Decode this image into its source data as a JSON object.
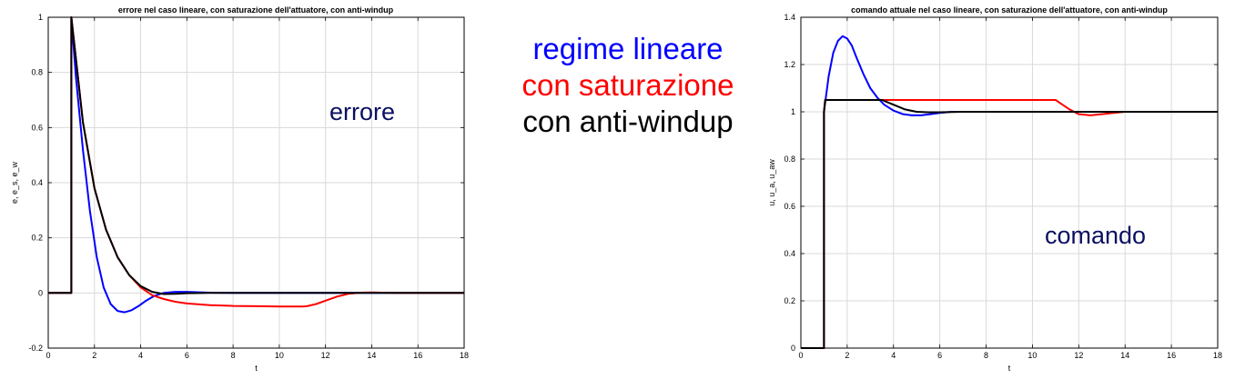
{
  "legend": {
    "linear": {
      "text": "regime lineare",
      "color": "#0000ff"
    },
    "saturation": {
      "text": "con saturazione",
      "color": "#ff0000"
    },
    "antiwindup": {
      "text": "con anti-windup",
      "color": "#000000"
    }
  },
  "chart_data": [
    {
      "id": "left",
      "type": "line",
      "title": "errore nel caso lineare, con saturazione dell'attuatore, con anti-windup",
      "xlabel": "t",
      "ylabel": "e, e_s, e_w",
      "annotation": "errore",
      "xlim": [
        0,
        18
      ],
      "ylim": [
        -0.2,
        1
      ],
      "xticks": [
        "0",
        "2",
        "4",
        "6",
        "8",
        "10",
        "12",
        "14",
        "16",
        "18"
      ],
      "yticks": [
        "-0.2",
        "0",
        "0.2",
        "0.4",
        "0.6",
        "0.8",
        "1"
      ],
      "grid": true,
      "series": [
        {
          "key": "linear",
          "color": "#0000ff",
          "x": [
            0,
            1,
            1,
            1.2,
            1.5,
            1.8,
            2.1,
            2.4,
            2.7,
            3.0,
            3.3,
            3.6,
            3.9,
            4.2,
            4.6,
            5.0,
            5.5,
            6.0,
            7.0,
            8.0,
            10,
            12,
            14,
            16,
            18
          ],
          "y": [
            0,
            0,
            1,
            0.78,
            0.52,
            0.3,
            0.13,
            0.02,
            -0.04,
            -0.065,
            -0.07,
            -0.063,
            -0.048,
            -0.03,
            -0.01,
            0.0,
            0.004,
            0.004,
            0.001,
            0,
            0,
            0,
            0,
            0,
            0
          ]
        },
        {
          "key": "saturation",
          "color": "#ff0000",
          "x": [
            0,
            1,
            1,
            1.5,
            2,
            2.5,
            3,
            3.5,
            4,
            4.5,
            5,
            5.5,
            6,
            7,
            8,
            9,
            10,
            11,
            11.2,
            11.6,
            12,
            12.5,
            13,
            13.5,
            14,
            14.5,
            15,
            16,
            18
          ],
          "y": [
            0,
            0,
            1,
            0.62,
            0.38,
            0.23,
            0.13,
            0.065,
            0.02,
            -0.008,
            -0.022,
            -0.032,
            -0.038,
            -0.044,
            -0.047,
            -0.048,
            -0.049,
            -0.049,
            -0.048,
            -0.04,
            -0.028,
            -0.013,
            -0.003,
            0.001,
            0.002,
            0.001,
            0,
            0,
            0
          ]
        },
        {
          "key": "antiwindup",
          "color": "#000000",
          "x": [
            0,
            1,
            1,
            1.5,
            2,
            2.5,
            3,
            3.5,
            4,
            4.5,
            5,
            5.5,
            6,
            7,
            8,
            10,
            12,
            14,
            16,
            18
          ],
          "y": [
            0,
            0,
            1,
            0.62,
            0.38,
            0.23,
            0.13,
            0.065,
            0.025,
            0.004,
            -0.004,
            -0.003,
            -0.001,
            0,
            0,
            0,
            0,
            0,
            0,
            0
          ]
        }
      ]
    },
    {
      "id": "right",
      "type": "line",
      "title": "comando attuale nel caso lineare, con saturazione dell'attuatore, con anti-windup",
      "xlabel": "t",
      "ylabel": "u, u_a, u_aw",
      "annotation": "comando",
      "xlim": [
        0,
        18
      ],
      "ylim": [
        0,
        1.4
      ],
      "xticks": [
        "0",
        "2",
        "4",
        "6",
        "8",
        "10",
        "12",
        "14",
        "16",
        "18"
      ],
      "yticks": [
        "0",
        "0.2",
        "0.4",
        "0.6",
        "0.8",
        "1",
        "1.2",
        "1.4"
      ],
      "grid": true,
      "series": [
        {
          "key": "linear",
          "color": "#0000ff",
          "x": [
            0,
            1,
            1,
            1.2,
            1.4,
            1.6,
            1.8,
            2.0,
            2.2,
            2.4,
            2.7,
            3.0,
            3.3,
            3.6,
            4.0,
            4.4,
            4.8,
            5.2,
            5.6,
            6.0,
            6.5,
            7,
            8,
            10,
            12,
            14,
            16,
            18
          ],
          "y": [
            0,
            0,
            1,
            1.15,
            1.25,
            1.3,
            1.32,
            1.31,
            1.28,
            1.23,
            1.16,
            1.1,
            1.06,
            1.03,
            1.005,
            0.99,
            0.985,
            0.985,
            0.99,
            0.995,
            1.0,
            1.0,
            1.0,
            1,
            1,
            1,
            1,
            1
          ]
        },
        {
          "key": "saturation",
          "color": "#ff0000",
          "x": [
            0,
            1,
            1,
            1.05,
            4,
            6,
            8,
            10,
            11,
            11.3,
            11.6,
            12,
            12.5,
            13,
            13.5,
            14,
            15,
            16,
            18
          ],
          "y": [
            0,
            0,
            1,
            1.05,
            1.05,
            1.05,
            1.05,
            1.05,
            1.05,
            1.03,
            1.01,
            0.99,
            0.985,
            0.99,
            0.995,
            1,
            1,
            1,
            1
          ]
        },
        {
          "key": "antiwindup",
          "color": "#000000",
          "x": [
            0,
            1,
            1,
            1.05,
            3.5,
            4,
            4.5,
            5,
            5.5,
            6,
            7,
            8,
            10,
            12,
            14,
            16,
            18
          ],
          "y": [
            0,
            0,
            1,
            1.05,
            1.05,
            1.03,
            1.01,
            1.0,
            0.998,
            0.998,
            1,
            1,
            1,
            1,
            1,
            1,
            1
          ]
        }
      ]
    }
  ]
}
